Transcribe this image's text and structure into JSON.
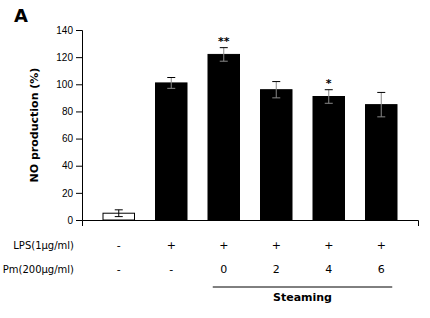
{
  "chart_data": {
    "type": "bar",
    "title": "A",
    "ylabel": "NO production (%)",
    "categories": [
      null,
      null,
      null,
      null,
      null,
      null
    ],
    "values": [
      5,
      101,
      122,
      96,
      91,
      85
    ],
    "errors": [
      2.5,
      4,
      5,
      6,
      5,
      9
    ],
    "colors": [
      "white",
      "black",
      "black",
      "black",
      "black",
      "black"
    ],
    "significance": [
      null,
      null,
      "**",
      null,
      "*",
      null
    ],
    "rows": [
      {
        "label": "LPS(1μg/ml)",
        "values": [
          "-",
          "+",
          "+",
          "+",
          "+",
          "+"
        ]
      },
      {
        "label": "Pm(200μg/ml)",
        "values": [
          "-",
          "-",
          "0",
          "2",
          "4",
          "6"
        ]
      }
    ],
    "group": {
      "label": "Steaming",
      "indices": [
        2,
        3,
        4,
        5
      ]
    },
    "ylim": [
      0,
      140
    ],
    "yticks": [
      0,
      20,
      40,
      60,
      80,
      100,
      120,
      140
    ],
    "grid": false
  }
}
